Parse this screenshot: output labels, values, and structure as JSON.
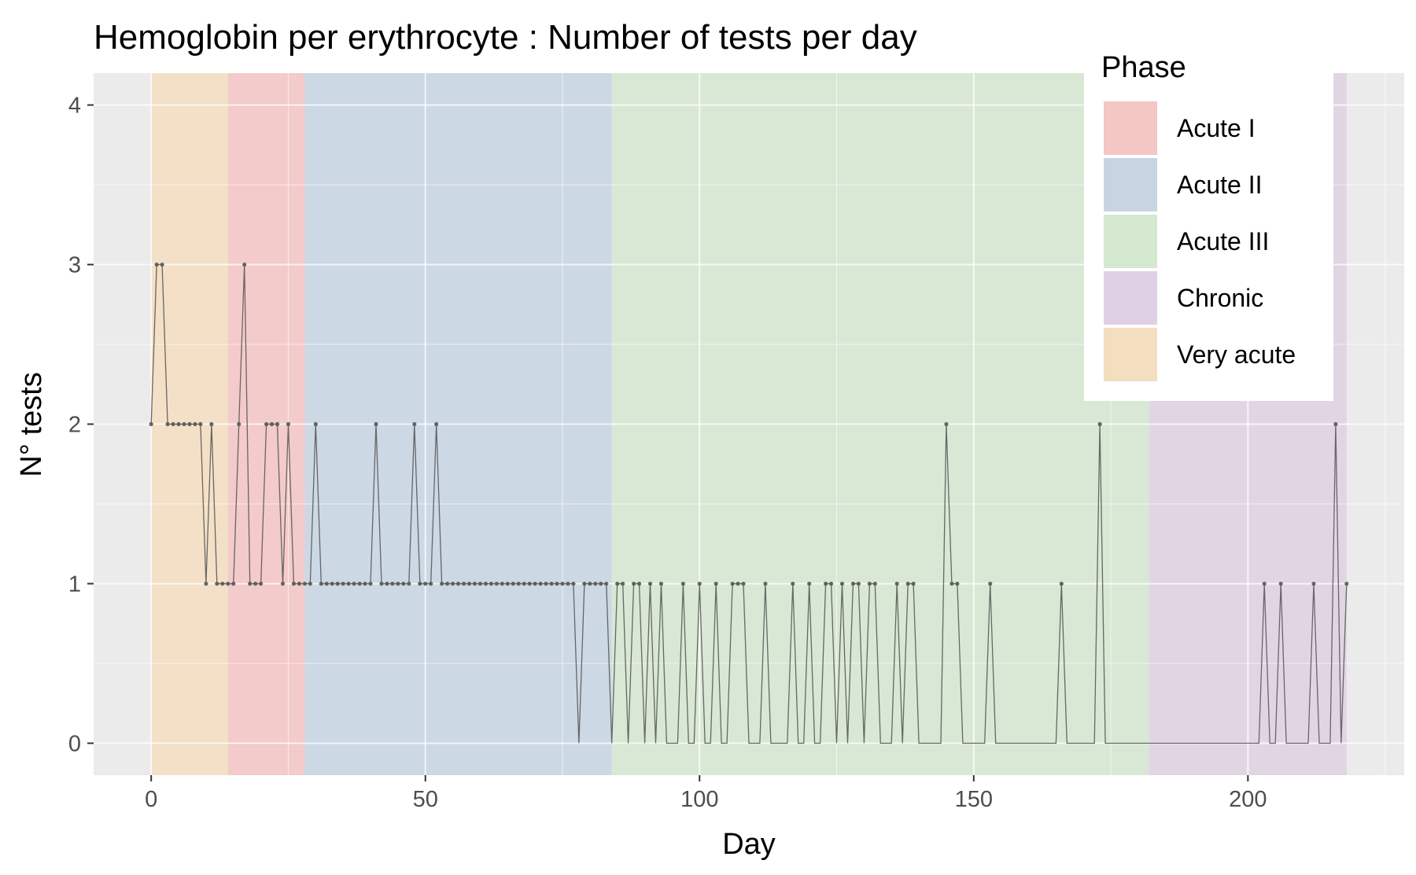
{
  "chart_data": {
    "type": "line",
    "title": "Hemoglobin per erythrocyte : Number of tests per day",
    "xlabel": "Day",
    "ylabel": "N° tests",
    "xlim": [
      -10.5,
      228.5
    ],
    "ylim": [
      -0.2,
      4.2
    ],
    "x_ticks": [
      0,
      50,
      100,
      150,
      200
    ],
    "x_tick_labels": [
      "0",
      "50",
      "100",
      "150",
      "200"
    ],
    "y_ticks": [
      0,
      1,
      2,
      3,
      4
    ],
    "y_tick_labels": [
      "0",
      "1",
      "2",
      "3",
      "4"
    ],
    "grid": true,
    "legend": {
      "title": "Phase",
      "position": "top-right",
      "entries": [
        {
          "label": "Acute I",
          "color": "#f4c6c4"
        },
        {
          "label": "Acute II",
          "color": "#c7d5e3"
        },
        {
          "label": "Acute III",
          "color": "#d5e8d0"
        },
        {
          "label": "Chronic",
          "color": "#dfd1e3"
        },
        {
          "label": "Very acute",
          "color": "#f4dec0"
        }
      ]
    },
    "phases": [
      {
        "phase": "Very acute",
        "start": 0,
        "end": 14,
        "color": "#f4dec0"
      },
      {
        "phase": "Acute I",
        "start": 14,
        "end": 28,
        "color": "#f4c6c4"
      },
      {
        "phase": "Acute II",
        "start": 28,
        "end": 84,
        "color": "#c7d5e3"
      },
      {
        "phase": "Acute III",
        "start": 84,
        "end": 182,
        "color": "#d5e8d0"
      },
      {
        "phase": "Chronic",
        "start": 182,
        "end": 218,
        "color": "#dfd1e3"
      }
    ],
    "series": [
      {
        "line_color": "#5a5a5a",
        "points": [
          [
            0,
            2
          ],
          [
            1,
            3
          ],
          [
            2,
            3
          ],
          [
            3,
            2
          ],
          [
            4,
            2
          ],
          [
            5,
            2
          ],
          [
            6,
            2
          ],
          [
            7,
            2
          ],
          [
            8,
            2
          ],
          [
            9,
            2
          ],
          [
            10,
            1
          ],
          [
            11,
            2
          ],
          [
            12,
            1
          ],
          [
            13,
            1
          ],
          [
            14,
            1
          ],
          [
            15,
            1
          ],
          [
            16,
            2
          ],
          [
            17,
            3
          ],
          [
            18,
            1
          ],
          [
            19,
            1
          ],
          [
            20,
            1
          ],
          [
            21,
            2
          ],
          [
            22,
            2
          ],
          [
            23,
            2
          ],
          [
            24,
            1
          ],
          [
            25,
            2
          ],
          [
            26,
            1
          ],
          [
            27,
            1
          ],
          [
            28,
            1
          ],
          [
            29,
            1
          ],
          [
            30,
            2
          ],
          [
            31,
            1
          ],
          [
            32,
            1
          ],
          [
            33,
            1
          ],
          [
            34,
            1
          ],
          [
            35,
            1
          ],
          [
            36,
            1
          ],
          [
            37,
            1
          ],
          [
            38,
            1
          ],
          [
            39,
            1
          ],
          [
            40,
            1
          ],
          [
            41,
            2
          ],
          [
            42,
            1
          ],
          [
            43,
            1
          ],
          [
            44,
            1
          ],
          [
            45,
            1
          ],
          [
            46,
            1
          ],
          [
            47,
            1
          ],
          [
            48,
            2
          ],
          [
            49,
            1
          ],
          [
            50,
            1
          ],
          [
            51,
            1
          ],
          [
            52,
            2
          ],
          [
            53,
            1
          ],
          [
            54,
            1
          ],
          [
            55,
            1
          ],
          [
            56,
            1
          ],
          [
            57,
            1
          ],
          [
            58,
            1
          ],
          [
            59,
            1
          ],
          [
            60,
            1
          ],
          [
            61,
            1
          ],
          [
            62,
            1
          ],
          [
            63,
            1
          ],
          [
            64,
            1
          ],
          [
            65,
            1
          ],
          [
            66,
            1
          ],
          [
            67,
            1
          ],
          [
            68,
            1
          ],
          [
            69,
            1
          ],
          [
            70,
            1
          ],
          [
            71,
            1
          ],
          [
            72,
            1
          ],
          [
            73,
            1
          ],
          [
            74,
            1
          ],
          [
            75,
            1
          ],
          [
            76,
            1
          ],
          [
            77,
            1
          ],
          [
            78,
            0
          ],
          [
            79,
            1
          ],
          [
            80,
            1
          ],
          [
            81,
            1
          ],
          [
            82,
            1
          ],
          [
            83,
            1
          ],
          [
            84,
            0
          ],
          [
            85,
            1
          ],
          [
            86,
            1
          ],
          [
            87,
            0
          ],
          [
            88,
            1
          ],
          [
            89,
            1
          ],
          [
            90,
            0
          ],
          [
            91,
            1
          ],
          [
            92,
            0
          ],
          [
            93,
            1
          ],
          [
            94,
            0
          ],
          [
            95,
            0
          ],
          [
            96,
            0
          ],
          [
            97,
            1
          ],
          [
            98,
            0
          ],
          [
            99,
            0
          ],
          [
            100,
            1
          ],
          [
            101,
            0
          ],
          [
            102,
            0
          ],
          [
            103,
            1
          ],
          [
            104,
            0
          ],
          [
            105,
            0
          ],
          [
            106,
            1
          ],
          [
            107,
            1
          ],
          [
            108,
            1
          ],
          [
            109,
            0
          ],
          [
            110,
            0
          ],
          [
            111,
            0
          ],
          [
            112,
            1
          ],
          [
            113,
            0
          ],
          [
            114,
            0
          ],
          [
            115,
            0
          ],
          [
            116,
            0
          ],
          [
            117,
            1
          ],
          [
            118,
            0
          ],
          [
            119,
            0
          ],
          [
            120,
            1
          ],
          [
            121,
            0
          ],
          [
            122,
            0
          ],
          [
            123,
            1
          ],
          [
            124,
            1
          ],
          [
            125,
            0
          ],
          [
            126,
            1
          ],
          [
            127,
            0
          ],
          [
            128,
            1
          ],
          [
            129,
            1
          ],
          [
            130,
            0
          ],
          [
            131,
            1
          ],
          [
            132,
            1
          ],
          [
            133,
            0
          ],
          [
            134,
            0
          ],
          [
            135,
            0
          ],
          [
            136,
            1
          ],
          [
            137,
            0
          ],
          [
            138,
            1
          ],
          [
            139,
            1
          ],
          [
            140,
            0
          ],
          [
            141,
            0
          ],
          [
            142,
            0
          ],
          [
            143,
            0
          ],
          [
            144,
            0
          ],
          [
            145,
            2
          ],
          [
            146,
            1
          ],
          [
            147,
            1
          ],
          [
            148,
            0
          ],
          [
            149,
            0
          ],
          [
            150,
            0
          ],
          [
            151,
            0
          ],
          [
            152,
            0
          ],
          [
            153,
            1
          ],
          [
            154,
            0
          ],
          [
            155,
            0
          ],
          [
            156,
            0
          ],
          [
            157,
            0
          ],
          [
            158,
            0
          ],
          [
            159,
            0
          ],
          [
            160,
            0
          ],
          [
            161,
            0
          ],
          [
            162,
            0
          ],
          [
            163,
            0
          ],
          [
            164,
            0
          ],
          [
            165,
            0
          ],
          [
            166,
            1
          ],
          [
            167,
            0
          ],
          [
            168,
            0
          ],
          [
            169,
            0
          ],
          [
            170,
            0
          ],
          [
            171,
            0
          ],
          [
            172,
            0
          ],
          [
            173,
            2
          ],
          [
            174,
            0
          ],
          [
            175,
            0
          ],
          [
            176,
            0
          ],
          [
            177,
            0
          ],
          [
            178,
            0
          ],
          [
            179,
            0
          ],
          [
            180,
            0
          ],
          [
            181,
            0
          ],
          [
            182,
            0
          ],
          [
            183,
            0
          ],
          [
            184,
            0
          ],
          [
            185,
            0
          ],
          [
            186,
            0
          ],
          [
            187,
            0
          ],
          [
            188,
            0
          ],
          [
            189,
            0
          ],
          [
            190,
            0
          ],
          [
            191,
            0
          ],
          [
            192,
            0
          ],
          [
            193,
            0
          ],
          [
            194,
            0
          ],
          [
            195,
            0
          ],
          [
            196,
            0
          ],
          [
            197,
            0
          ],
          [
            198,
            0
          ],
          [
            199,
            0
          ],
          [
            200,
            0
          ],
          [
            201,
            0
          ],
          [
            202,
            0
          ],
          [
            203,
            1
          ],
          [
            204,
            0
          ],
          [
            205,
            0
          ],
          [
            206,
            1
          ],
          [
            207,
            0
          ],
          [
            208,
            0
          ],
          [
            209,
            0
          ],
          [
            210,
            0
          ],
          [
            211,
            0
          ],
          [
            212,
            1
          ],
          [
            213,
            0
          ],
          [
            214,
            0
          ],
          [
            215,
            0
          ],
          [
            216,
            2
          ],
          [
            217,
            0
          ],
          [
            218,
            1
          ]
        ],
        "marked_x": [
          0,
          1,
          2,
          3,
          4,
          5,
          6,
          7,
          8,
          9,
          10,
          11,
          12,
          13,
          14,
          15,
          16,
          17,
          18,
          19,
          20,
          21,
          22,
          23,
          24,
          25,
          26,
          27,
          28,
          29,
          30,
          31,
          32,
          33,
          34,
          35,
          36,
          37,
          38,
          39,
          40,
          41,
          42,
          43,
          44,
          45,
          46,
          47,
          48,
          49,
          50,
          51,
          52,
          53,
          54,
          55,
          56,
          57,
          58,
          59,
          60,
          61,
          62,
          63,
          64,
          65,
          66,
          67,
          68,
          69,
          70,
          71,
          72,
          73,
          74,
          75,
          76,
          77,
          79,
          80,
          81,
          82,
          83,
          85,
          86,
          88,
          89,
          91,
          93,
          97,
          100,
          103,
          106,
          107,
          108,
          112,
          117,
          120,
          123,
          124,
          126,
          128,
          129,
          131,
          132,
          136,
          138,
          139,
          145,
          146,
          147,
          153,
          166,
          173,
          203,
          206,
          212,
          216,
          218
        ]
      }
    ]
  }
}
